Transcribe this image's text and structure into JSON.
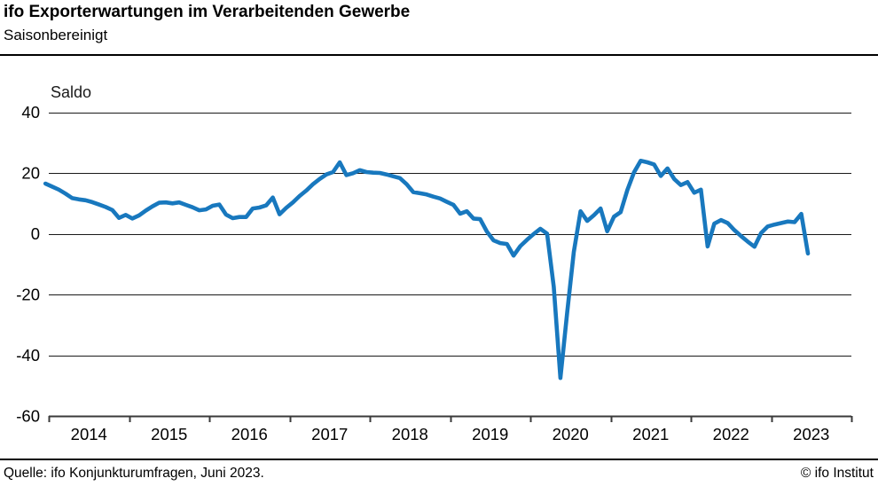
{
  "header": {
    "title": "ifo Exporterwartungen im Verarbeitenden Gewerbe",
    "subtitle": "Saisonbereinigt"
  },
  "chart_data": {
    "type": "line",
    "title": "ifo Exporterwartungen im Verarbeitenden Gewerbe",
    "subtitle": "Saisonbereinigt",
    "ylabel": "Saldo",
    "xlabel": "",
    "ylim": [
      -60,
      40
    ],
    "y_ticks": [
      40,
      20,
      0,
      -20,
      -40,
      -60
    ],
    "x_tick_years": [
      "2014",
      "2015",
      "2016",
      "2017",
      "2018",
      "2019",
      "2020",
      "2021",
      "2022",
      "2023"
    ],
    "grid": "horizontal-only",
    "legend_position": "none",
    "line_color": "#1878be",
    "grid_color": "#1a1a1a",
    "axis_color": "#3a3a3a",
    "series": [
      {
        "name": "Exporterwartungen (Saldo, saisonbereinigt)",
        "frequency": "monthly",
        "start": "2013-12",
        "end": "2023-06",
        "values": [
          16.5,
          15.5,
          14.5,
          13.2,
          11.7,
          11.3,
          11.0,
          10.4,
          9.6,
          8.8,
          7.8,
          5.2,
          6.2,
          5.0,
          6.0,
          7.6,
          9.0,
          10.2,
          10.3,
          10.0,
          10.3,
          9.5,
          8.7,
          7.7,
          8.0,
          9.2,
          9.6,
          6.3,
          5.1,
          5.5,
          5.5,
          8.3,
          8.6,
          9.3,
          11.9,
          6.4,
          8.5,
          10.3,
          12.4,
          14.2,
          16.3,
          18.0,
          19.5,
          20.3,
          23.5,
          19.3,
          19.9,
          20.9,
          20.3,
          20.1,
          20.0,
          19.5,
          18.9,
          18.3,
          16.3,
          13.7,
          13.3,
          12.9,
          12.2,
          11.6,
          10.5,
          9.5,
          6.6,
          7.4,
          5.0,
          4.8,
          0.7,
          -2.2,
          -3.1,
          -3.4,
          -7.2,
          -4.1,
          -2.0,
          -0.1,
          1.6,
          0.0,
          -17.5,
          -47.5,
          -26.0,
          -6.0,
          7.4,
          4.2,
          6.1,
          8.3,
          0.8,
          5.6,
          7.1,
          14.4,
          20.2,
          24.0,
          23.5,
          22.8,
          19.0,
          21.5,
          18.0,
          16.0,
          17.0,
          13.5,
          14.5,
          -4.2,
          3.3,
          4.5,
          3.5,
          1.2,
          -0.8,
          -2.6,
          -4.3,
          0.2,
          2.4,
          3.0,
          3.5,
          4.0,
          3.8,
          6.5,
          -6.5
        ]
      }
    ]
  },
  "footer": {
    "source": "Quelle:  ifo Konjunkturumfragen,  Juni 2023.",
    "copyright": "© ifo Institut"
  }
}
